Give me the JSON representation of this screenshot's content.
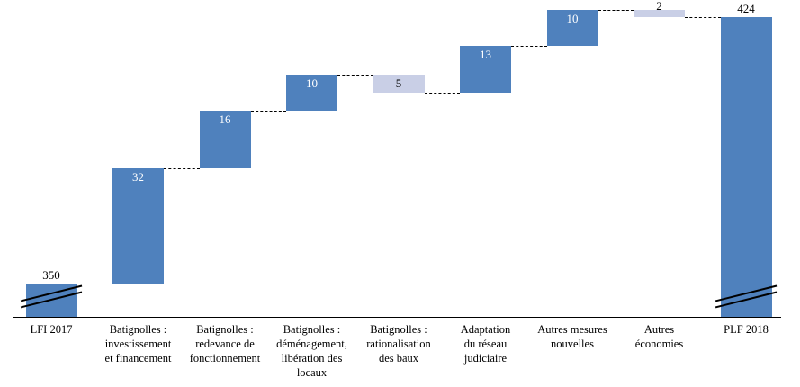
{
  "chart_data": {
    "type": "bar",
    "subtype": "waterfall",
    "title": "",
    "legend": "none",
    "grid": "off",
    "axis_break": true,
    "colors": {
      "increase_bar": "#4f81bd",
      "decrease_bar": "#c9cfe6",
      "total_bar": "#4f81bd",
      "connector": "#000000",
      "axis": "#000000",
      "value_on_dark": "#ffffff",
      "value_on_light": "#000000"
    },
    "bars": [
      {
        "category": "LFI 2017",
        "category_lines": [
          "LFI 2017"
        ],
        "type": "start",
        "value": 350,
        "display_value": "350",
        "value_label_pos": "above",
        "axis_break": true
      },
      {
        "category": "Batignolles : investissement et financement",
        "category_lines": [
          "Batignolles :",
          "investissement",
          "et financement"
        ],
        "type": "increase",
        "value": 32,
        "display_value": "32",
        "value_label_pos": "inside"
      },
      {
        "category": "Batignolles : redevance de fonctionnement",
        "category_lines": [
          "Batignolles :",
          "redevance de",
          "fonctionnement"
        ],
        "type": "increase",
        "value": 16,
        "display_value": "16",
        "value_label_pos": "inside"
      },
      {
        "category": "Batignolles : déménagement, libération des locaux",
        "category_lines": [
          "Batignolles :",
          "déménagement,",
          "libération des",
          "locaux"
        ],
        "type": "increase",
        "value": 10,
        "display_value": "10",
        "value_label_pos": "inside"
      },
      {
        "category": "Batignolles : rationalisation des baux",
        "category_lines": [
          "Batignolles :",
          "rationalisation",
          "des baux"
        ],
        "type": "decrease",
        "value": 5,
        "display_value": "5",
        "value_label_pos": "inside"
      },
      {
        "category": "Adaptation du réseau judiciaire",
        "category_lines": [
          "Adaptation",
          "du réseau",
          "judiciaire"
        ],
        "type": "increase",
        "value": 13,
        "display_value": "13",
        "value_label_pos": "inside"
      },
      {
        "category": "Autres mesures nouvelles",
        "category_lines": [
          "Autres mesures",
          "nouvelles"
        ],
        "type": "increase",
        "value": 10,
        "display_value": "10",
        "value_label_pos": "inside"
      },
      {
        "category": "Autres économies",
        "category_lines": [
          "Autres",
          "économies"
        ],
        "type": "decrease",
        "value": 2,
        "display_value": "2",
        "value_label_pos": "above"
      },
      {
        "category": "PLF 2018",
        "category_lines": [
          "PLF 2018"
        ],
        "type": "total",
        "value": 424,
        "display_value": "424",
        "value_label_pos": "above",
        "axis_break": true
      }
    ]
  }
}
